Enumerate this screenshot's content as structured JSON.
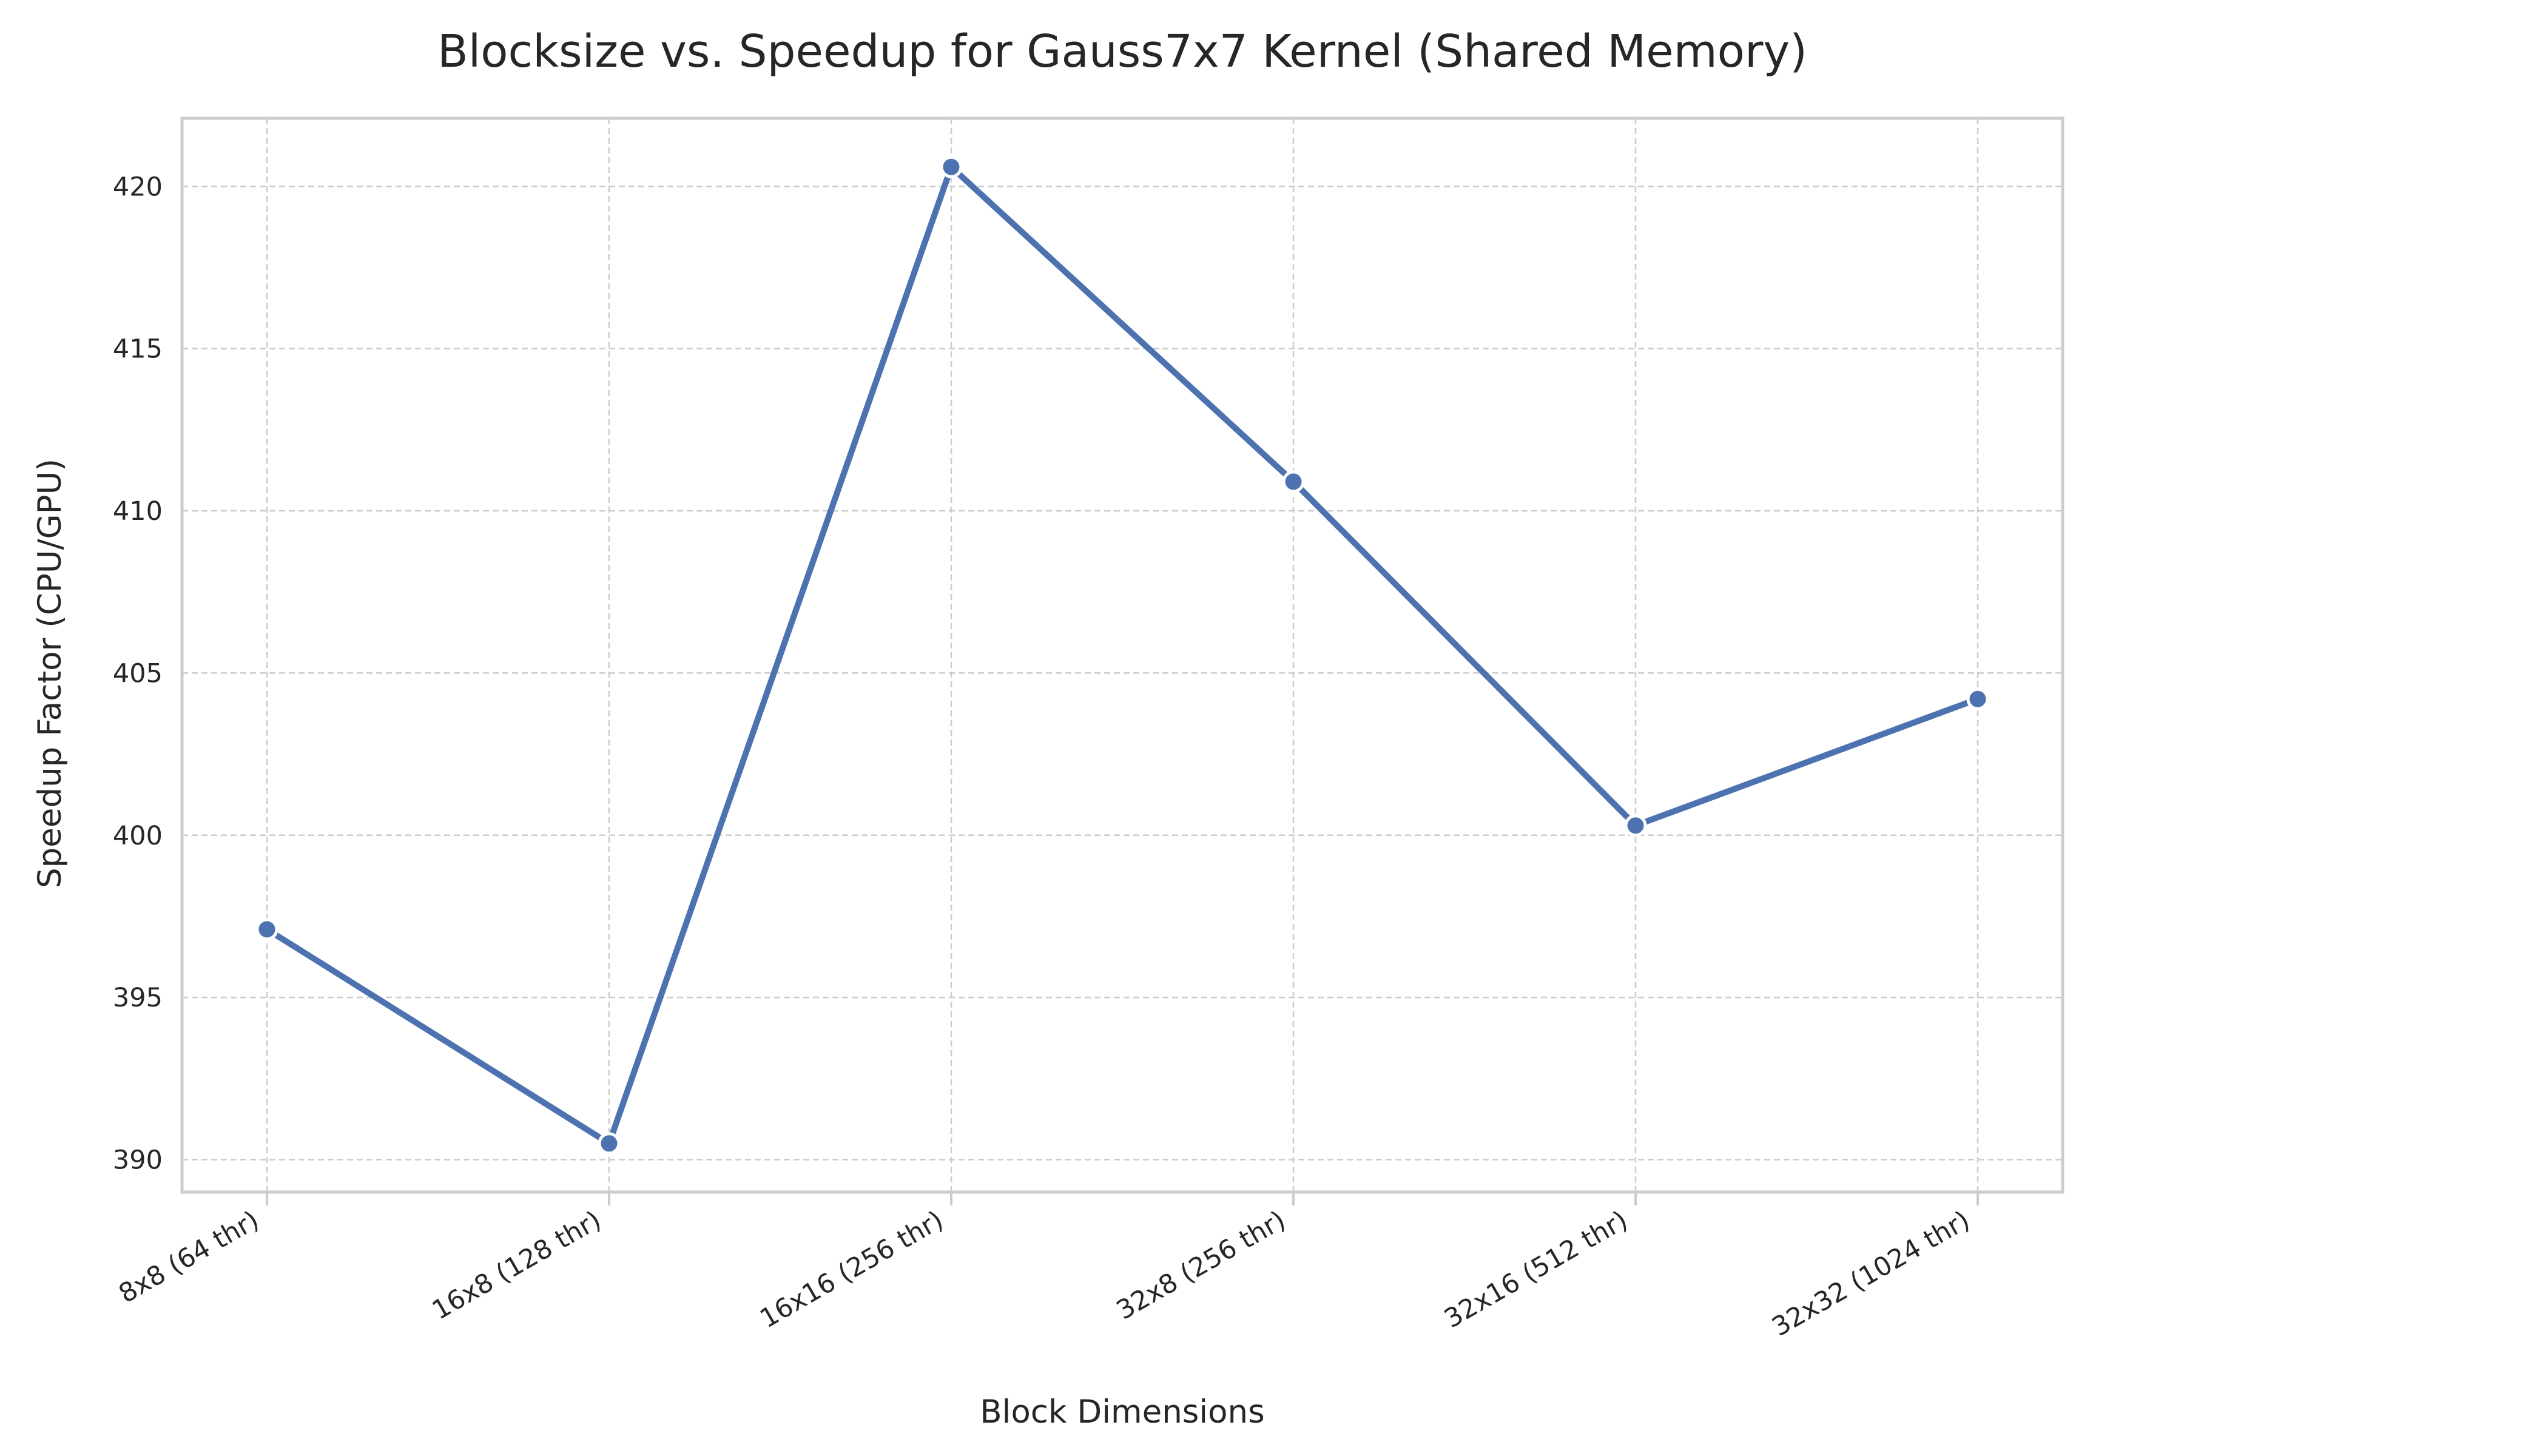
{
  "chart_data": {
    "type": "line",
    "title": "Blocksize vs. Speedup for Gauss7x7 Kernel (Shared Memory)",
    "xlabel": "Block Dimensions",
    "ylabel": "Speedup Factor (CPU/GPU)",
    "categories": [
      "8x8 (64 thr)",
      "16x8 (128 thr)",
      "16x16 (256 thr)",
      "32x8 (256 thr)",
      "32x16 (512 thr)",
      "32x32 (1024 thr)"
    ],
    "series": [
      {
        "values": [
          397.1,
          390.5,
          420.6,
          410.9,
          400.3,
          404.2
        ]
      }
    ],
    "ylim": [
      389,
      422.1
    ],
    "yticks": [
      390,
      395,
      400,
      405,
      410,
      415,
      420
    ],
    "grid": true,
    "line_color": "#4c72b0"
  }
}
